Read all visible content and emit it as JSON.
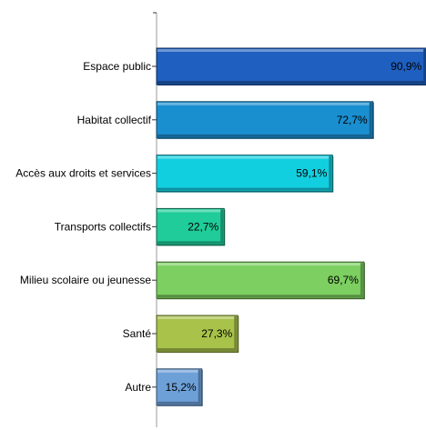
{
  "chart_data": {
    "type": "bar",
    "orientation": "horizontal",
    "categories": [
      "Espace public",
      "Habitat collectif",
      "Accès aux droits et services",
      "Transports collectifs",
      "Milieu scolaire ou jeunesse",
      "Santé",
      "Autre"
    ],
    "values": [
      90.9,
      72.7,
      59.1,
      22.7,
      69.7,
      27.3,
      15.2
    ],
    "value_labels": [
      "90,9%",
      "72,7%",
      "59,1%",
      "22,7%",
      "69,7%",
      "27,3%",
      "15,2%"
    ],
    "colors": [
      "#1f5fbf",
      "#1a8fd0",
      "#12cfe0",
      "#1fcc9a",
      "#7ccf60",
      "#a8c24a",
      "#6ea0d8"
    ],
    "xlim": [
      0,
      100
    ],
    "grid": false,
    "legend": "none",
    "title": "",
    "xlabel": "",
    "ylabel": ""
  }
}
